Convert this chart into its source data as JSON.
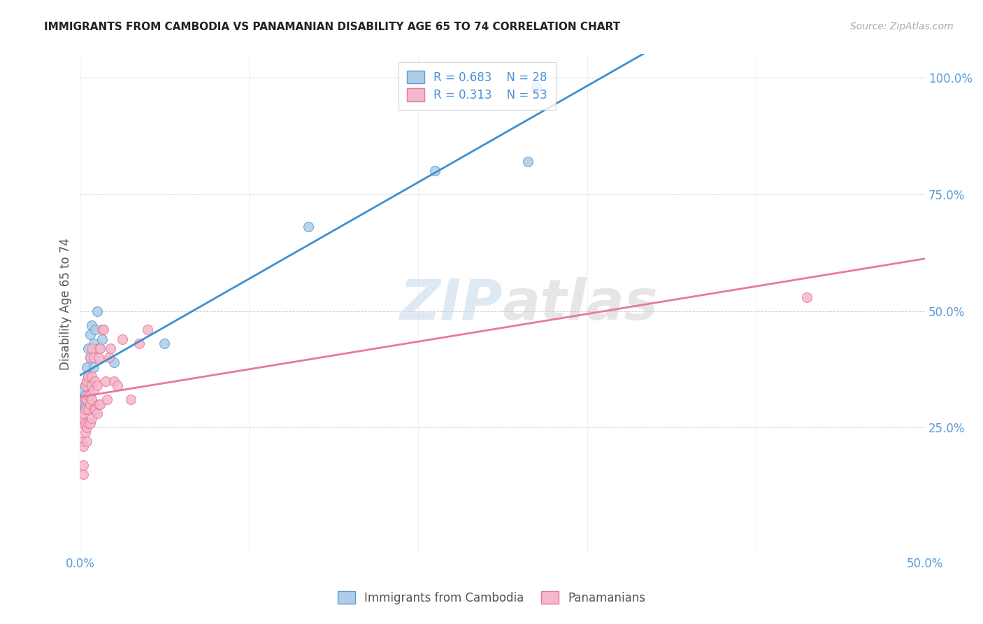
{
  "title": "IMMIGRANTS FROM CAMBODIA VS PANAMANIAN DISABILITY AGE 65 TO 74 CORRELATION CHART",
  "source": "Source: ZipAtlas.com",
  "ylabel": "Disability Age 65 to 74",
  "xlim": [
    0.0,
    0.5
  ],
  "ylim": [
    -0.02,
    1.05
  ],
  "xticks": [
    0.0,
    0.1,
    0.2,
    0.3,
    0.4,
    0.5
  ],
  "xtick_labels": [
    "0.0%",
    "",
    "",
    "",
    "",
    "50.0%"
  ],
  "yticks": [
    0.25,
    0.5,
    0.75,
    1.0
  ],
  "ytick_labels": [
    "25.0%",
    "50.0%",
    "75.0%",
    "100.0%"
  ],
  "watermark_zip": "ZIP",
  "watermark_atlas": "atlas",
  "blue_R": 0.683,
  "blue_N": 28,
  "pink_R": 0.313,
  "pink_N": 53,
  "blue_face_color": "#aecde8",
  "pink_face_color": "#f5b8cb",
  "blue_edge_color": "#5a9fd4",
  "pink_edge_color": "#e8799a",
  "blue_line_color": "#3d8fd1",
  "pink_line_color": "#e8799a",
  "blue_points_x": [
    0.001,
    0.001,
    0.002,
    0.002,
    0.002,
    0.003,
    0.003,
    0.003,
    0.004,
    0.004,
    0.004,
    0.005,
    0.005,
    0.006,
    0.006,
    0.007,
    0.008,
    0.008,
    0.009,
    0.01,
    0.011,
    0.013,
    0.02,
    0.05,
    0.135,
    0.21,
    0.265,
    0.27
  ],
  "blue_points_y": [
    0.295,
    0.31,
    0.29,
    0.3,
    0.33,
    0.295,
    0.32,
    0.34,
    0.31,
    0.35,
    0.38,
    0.36,
    0.42,
    0.4,
    0.45,
    0.47,
    0.38,
    0.43,
    0.46,
    0.5,
    0.42,
    0.44,
    0.39,
    0.43,
    0.68,
    0.8,
    0.82,
    0.98
  ],
  "pink_points_x": [
    0.001,
    0.001,
    0.001,
    0.002,
    0.002,
    0.002,
    0.002,
    0.003,
    0.003,
    0.003,
    0.003,
    0.003,
    0.004,
    0.004,
    0.004,
    0.004,
    0.005,
    0.005,
    0.005,
    0.005,
    0.006,
    0.006,
    0.006,
    0.006,
    0.007,
    0.007,
    0.007,
    0.007,
    0.007,
    0.008,
    0.008,
    0.008,
    0.009,
    0.009,
    0.01,
    0.01,
    0.011,
    0.011,
    0.012,
    0.012,
    0.013,
    0.014,
    0.015,
    0.016,
    0.017,
    0.018,
    0.02,
    0.022,
    0.025,
    0.03,
    0.035,
    0.04,
    0.43
  ],
  "pink_points_y": [
    0.22,
    0.26,
    0.27,
    0.15,
    0.17,
    0.21,
    0.28,
    0.24,
    0.26,
    0.29,
    0.31,
    0.34,
    0.22,
    0.25,
    0.31,
    0.35,
    0.26,
    0.29,
    0.32,
    0.36,
    0.26,
    0.3,
    0.32,
    0.4,
    0.27,
    0.31,
    0.34,
    0.36,
    0.42,
    0.29,
    0.33,
    0.4,
    0.29,
    0.35,
    0.28,
    0.34,
    0.3,
    0.4,
    0.3,
    0.42,
    0.46,
    0.46,
    0.35,
    0.31,
    0.4,
    0.42,
    0.35,
    0.34,
    0.44,
    0.31,
    0.43,
    0.46,
    0.53
  ]
}
